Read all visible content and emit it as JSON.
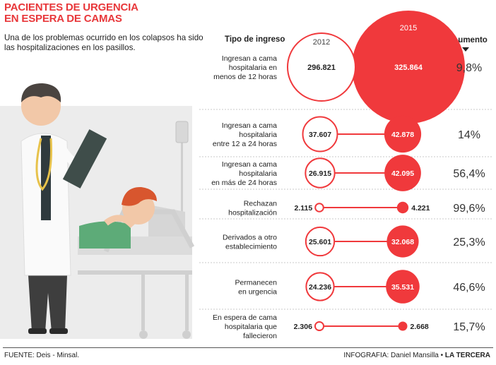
{
  "title_line1": "PACIENTES  DE URGENCIA",
  "title_line2": "EN ESPERA DE CAMAS",
  "subtitle": "Una de los problemas ocurrido en los colapsos ha sido las hospitalizaciones en los pasillos.",
  "footer_source": "FUENTE: Deis - Minsal.",
  "footer_credit_prefix": "INFOGRAFIA: Daniel Mansilla •",
  "footer_credit_brand": "LA TERCERA",
  "colors": {
    "red": "#f0393c",
    "gray": "#e3e3e3",
    "text": "#222222",
    "white_circle_stroke": "#f0393c"
  },
  "chart_data": {
    "type": "bubble-comparison",
    "title": "PACIENTES  DE URGENCIA EN ESPERA DE CAMAS",
    "row_header": "Tipo de ingreso",
    "change_header": "Aumento",
    "series": [
      {
        "name": "2012",
        "style": "outline"
      },
      {
        "name": "2015",
        "style": "filled"
      }
    ],
    "rows": [
      {
        "label": "Ingresan a cama hospitalaria en menos de 12 horas",
        "v2012": 296821,
        "v2015": 325864,
        "v2012_label": "296.821",
        "v2015_label": "325.864",
        "increase": "9,8%"
      },
      {
        "label": "Ingresan a cama hospitalaria entre 12 a 24 horas",
        "v2012": 37607,
        "v2015": 42878,
        "v2012_label": "37.607",
        "v2015_label": "42.878",
        "increase": "14%"
      },
      {
        "label": "Ingresan a cama hospitalaria en más de 24 horas",
        "v2012": 26915,
        "v2015": 42095,
        "v2012_label": "26.915",
        "v2015_label": "42.095",
        "increase": "56,4%"
      },
      {
        "label": "Rechazan hospitalización",
        "v2012": 2115,
        "v2015": 4221,
        "v2012_label": "2.115",
        "v2015_label": "4.221",
        "increase": "99,6%"
      },
      {
        "label": "Derivados a otro establecimiento",
        "v2012": 25601,
        "v2015": 32068,
        "v2012_label": "25.601",
        "v2015_label": "32.068",
        "increase": "25,3%"
      },
      {
        "label": "Permanecen en urgencia",
        "v2012": 24236,
        "v2015": 35531,
        "v2012_label": "24.236",
        "v2015_label": "35.531",
        "increase": "46,6%"
      },
      {
        "label": "En espera de cama hospitalaria que fallecieron",
        "v2012": 2306,
        "v2015": 2668,
        "v2012_label": "2.306",
        "v2015_label": "2.668",
        "increase": "15,7%"
      }
    ]
  }
}
